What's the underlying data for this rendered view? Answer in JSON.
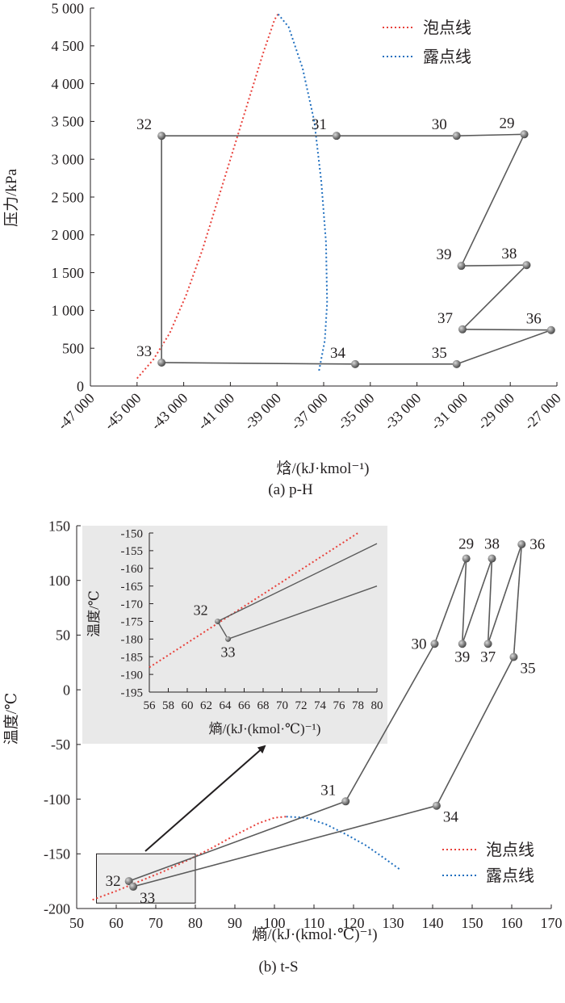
{
  "chart_data": [
    {
      "id": "a",
      "type": "line",
      "caption": "(a) p-H",
      "xlabel": "焓/(kJ·kmol⁻¹)",
      "ylabel": "压力/kPa",
      "xlim": [
        -47000,
        -27000
      ],
      "ylim": [
        0,
        5000
      ],
      "xticks": [
        -47000,
        -45000,
        -43000,
        -41000,
        -39000,
        -37000,
        -35000,
        -33000,
        -31000,
        -29000,
        -27000
      ],
      "xtick_labels": [
        "-47 000",
        "-45 000",
        "-43 000",
        "-41 000",
        "-39 000",
        "-37 000",
        "-35 000",
        "-33 000",
        "-31 000",
        "-29 000",
        "-27 000"
      ],
      "yticks": [
        0,
        500,
        1000,
        1500,
        2000,
        2500,
        3000,
        3500,
        4000,
        4500,
        5000
      ],
      "ytick_labels": [
        "0",
        "500",
        "1 000",
        "1 500",
        "2 000",
        "2 500",
        "3 000",
        "3 500",
        "4 000",
        "4 500",
        "5 000"
      ],
      "legend": {
        "position": "top-right",
        "entries": [
          {
            "name": "泡点线",
            "color": "#e8413b",
            "style": "dotted"
          },
          {
            "name": "露点线",
            "color": "#1f6fbf",
            "style": "dotted"
          }
        ]
      },
      "series": [
        {
          "name": "泡点线",
          "color": "#e8413b",
          "x": [
            -45000,
            -44300,
            -43600,
            -42900,
            -42200,
            -41500,
            -40800,
            -40200,
            -39600,
            -39100,
            -38950
          ],
          "y": [
            100,
            350,
            700,
            1200,
            1800,
            2500,
            3200,
            3800,
            4400,
            4850,
            4920
          ]
        },
        {
          "name": "露点线",
          "color": "#1f6fbf",
          "x": [
            -38950,
            -38500,
            -37900,
            -37400,
            -37100,
            -36900,
            -36850,
            -36950,
            -37200
          ],
          "y": [
            4920,
            4750,
            4200,
            3500,
            2700,
            1900,
            1100,
            600,
            200
          ]
        }
      ],
      "cycle_lines": [
        [
          "32",
          "31"
        ],
        [
          "31",
          "30"
        ],
        [
          "30",
          "29"
        ],
        [
          "29",
          "39"
        ],
        [
          "39",
          "38"
        ],
        [
          "38",
          "37"
        ],
        [
          "37",
          "36"
        ],
        [
          "36",
          "35"
        ],
        [
          "35",
          "34"
        ],
        [
          "34",
          "33"
        ],
        [
          "33",
          "32"
        ]
      ],
      "points": [
        {
          "label": "32",
          "x": -43950,
          "y": 3310,
          "label_pos": "left-top"
        },
        {
          "label": "31",
          "x": -36450,
          "y": 3310,
          "label_pos": "left-top"
        },
        {
          "label": "30",
          "x": -31300,
          "y": 3310,
          "label_pos": "left-top"
        },
        {
          "label": "29",
          "x": -28400,
          "y": 3330,
          "label_pos": "left-top"
        },
        {
          "label": "39",
          "x": -31100,
          "y": 1590,
          "label_pos": "left-top"
        },
        {
          "label": "38",
          "x": -28300,
          "y": 1600,
          "label_pos": "left-top"
        },
        {
          "label": "37",
          "x": -31050,
          "y": 750,
          "label_pos": "left-top"
        },
        {
          "label": "36",
          "x": -27250,
          "y": 740,
          "label_pos": "left-top"
        },
        {
          "label": "35",
          "x": -31300,
          "y": 290,
          "label_pos": "left-top"
        },
        {
          "label": "34",
          "x": -35650,
          "y": 290,
          "label_pos": "left-top"
        },
        {
          "label": "33",
          "x": -43950,
          "y": 310,
          "label_pos": "left-top"
        }
      ]
    },
    {
      "id": "b",
      "type": "line",
      "caption": "(b) t-S",
      "xlabel": "熵/(kJ·(kmol·℃)⁻¹)",
      "ylabel": "温度/℃",
      "xlim": [
        50,
        170
      ],
      "ylim": [
        -200,
        150
      ],
      "xticks": [
        50,
        60,
        70,
        80,
        90,
        100,
        110,
        120,
        130,
        140,
        150,
        160,
        170
      ],
      "xtick_labels": [
        "50",
        "60",
        "70",
        "80",
        "90",
        "100",
        "110",
        "120",
        "130",
        "140",
        "150",
        "160",
        "170"
      ],
      "yticks": [
        -200,
        -150,
        -100,
        -50,
        0,
        50,
        100,
        150
      ],
      "ytick_labels": [
        "-200",
        "-150",
        "-100",
        "-50",
        "0",
        "50",
        "100",
        "150"
      ],
      "legend": {
        "position": "bottom-right",
        "entries": [
          {
            "name": "泡点线",
            "color": "#e8413b",
            "style": "dotted"
          },
          {
            "name": "露点线",
            "color": "#1f6fbf",
            "style": "dotted"
          }
        ]
      },
      "series": [
        {
          "name": "泡点线",
          "color": "#e8413b",
          "x": [
            54,
            60,
            66,
            72,
            78,
            84,
            90,
            96,
            100,
            103
          ],
          "y": [
            -192,
            -184,
            -175,
            -166,
            -156,
            -145,
            -133,
            -122,
            -117,
            -116
          ]
        },
        {
          "name": "露点线",
          "color": "#1f6fbf",
          "x": [
            103,
            108,
            113,
            118,
            123,
            127,
            132
          ],
          "y": [
            -116,
            -117,
            -123,
            -132,
            -142,
            -152,
            -165
          ]
        }
      ],
      "cycle_lines": [
        [
          "32",
          "31"
        ],
        [
          "31",
          "30"
        ],
        [
          "30",
          "29"
        ],
        [
          "29",
          "39"
        ],
        [
          "39",
          "38"
        ],
        [
          "38",
          "37"
        ],
        [
          "37",
          "36"
        ],
        [
          "36",
          "35"
        ],
        [
          "35",
          "34"
        ],
        [
          "34",
          "33"
        ],
        [
          "33",
          "32"
        ]
      ],
      "points": [
        {
          "label": "32",
          "x": 63.2,
          "y": -175,
          "label_pos": "left"
        },
        {
          "label": "33",
          "x": 64.3,
          "y": -180,
          "label_pos": "bottom-right"
        },
        {
          "label": "31",
          "x": 118,
          "y": -102,
          "label_pos": "left-top"
        },
        {
          "label": "30",
          "x": 140.5,
          "y": 42,
          "label_pos": "left"
        },
        {
          "label": "29",
          "x": 148.5,
          "y": 120,
          "label_pos": "top"
        },
        {
          "label": "39",
          "x": 147.5,
          "y": 42,
          "label_pos": "bottom"
        },
        {
          "label": "38",
          "x": 155,
          "y": 120,
          "label_pos": "top"
        },
        {
          "label": "37",
          "x": 154,
          "y": 42,
          "label_pos": "bottom"
        },
        {
          "label": "36",
          "x": 162.5,
          "y": 133,
          "label_pos": "right"
        },
        {
          "label": "35",
          "x": 160.5,
          "y": 30,
          "label_pos": "bottom-right"
        },
        {
          "label": "34",
          "x": 141,
          "y": -106,
          "label_pos": "bottom-right"
        }
      ],
      "zoom_box": {
        "xlim": [
          55,
          80
        ],
        "ylim": [
          -195,
          -150
        ]
      }
    },
    {
      "id": "b-inset",
      "type": "line",
      "ylabel": "温度/℃",
      "xlabel": "熵/(kJ·(kmol·℃)⁻¹)",
      "xlim": [
        56,
        80
      ],
      "ylim": [
        -195,
        -150
      ],
      "xticks": [
        56,
        58,
        60,
        62,
        64,
        66,
        68,
        70,
        72,
        74,
        76,
        78,
        80
      ],
      "xtick_labels": [
        "56",
        "58",
        "60",
        "62",
        "64",
        "66",
        "68",
        "70",
        "72",
        "74",
        "76",
        "78",
        "80"
      ],
      "yticks": [
        -195,
        -190,
        -185,
        -180,
        -175,
        -170,
        -165,
        -160,
        -155,
        -150
      ],
      "ytick_labels": [
        "-195",
        "-190",
        "-185",
        "-180",
        "-175",
        "-170",
        "-165",
        "-160",
        "-155",
        "-150"
      ],
      "background": "#e9e9e9",
      "series": [
        {
          "name": "泡点线",
          "color": "#e8413b",
          "x": [
            56,
            78
          ],
          "y": [
            -188,
            -150
          ]
        }
      ],
      "lines": [
        {
          "x": [
            63.2,
            80
          ],
          "y": [
            -175,
            -153
          ]
        },
        {
          "x": [
            63.2,
            64.3
          ],
          "y": [
            -175,
            -180
          ]
        },
        {
          "x": [
            64.3,
            80
          ],
          "y": [
            -180,
            -165
          ]
        }
      ],
      "points": [
        {
          "label": "32",
          "x": 63.2,
          "y": -175,
          "label_pos": "left-top"
        },
        {
          "label": "33",
          "x": 64.3,
          "y": -180,
          "label_pos": "bottom"
        }
      ]
    }
  ]
}
